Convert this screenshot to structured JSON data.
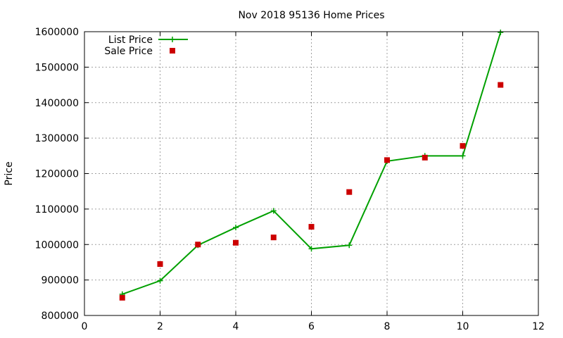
{
  "chart_data": {
    "type": "line",
    "title": "Nov 2018 95136 Home Prices",
    "xlabel": "",
    "ylabel": "Price",
    "xlim": [
      0,
      12
    ],
    "ylim": [
      800000,
      1600000
    ],
    "xticks": [
      0,
      2,
      4,
      6,
      8,
      10,
      12
    ],
    "yticks": [
      800000,
      900000,
      1000000,
      1100000,
      1200000,
      1300000,
      1400000,
      1500000,
      1600000
    ],
    "xtick_labels": [
      "0",
      "2",
      "4",
      "6",
      "8",
      "10",
      "12"
    ],
    "ytick_labels": [
      "800000",
      "900000",
      "1000000",
      "1100000",
      "1200000",
      "1300000",
      "1400000",
      "1500000",
      "1600000"
    ],
    "grid": true,
    "legend_position": "top-left",
    "series": [
      {
        "name": "List Price",
        "style": "line-with-plus-markers",
        "color": "#00a000",
        "x": [
          1,
          2,
          3,
          4,
          5,
          6,
          7,
          8,
          9,
          10,
          11
        ],
        "y": [
          860000,
          898000,
          998000,
          1048000,
          1095000,
          988000,
          998000,
          1235000,
          1250000,
          1250000,
          1598000
        ]
      },
      {
        "name": "Sale Price",
        "style": "square-markers",
        "color": "#cc0000",
        "x": [
          1,
          2,
          3,
          4,
          5,
          6,
          7,
          8,
          9,
          10,
          11
        ],
        "y": [
          850000,
          945000,
          1000000,
          1005000,
          1020000,
          1050000,
          1148000,
          1238000,
          1245000,
          1278000,
          1450000
        ]
      }
    ]
  }
}
